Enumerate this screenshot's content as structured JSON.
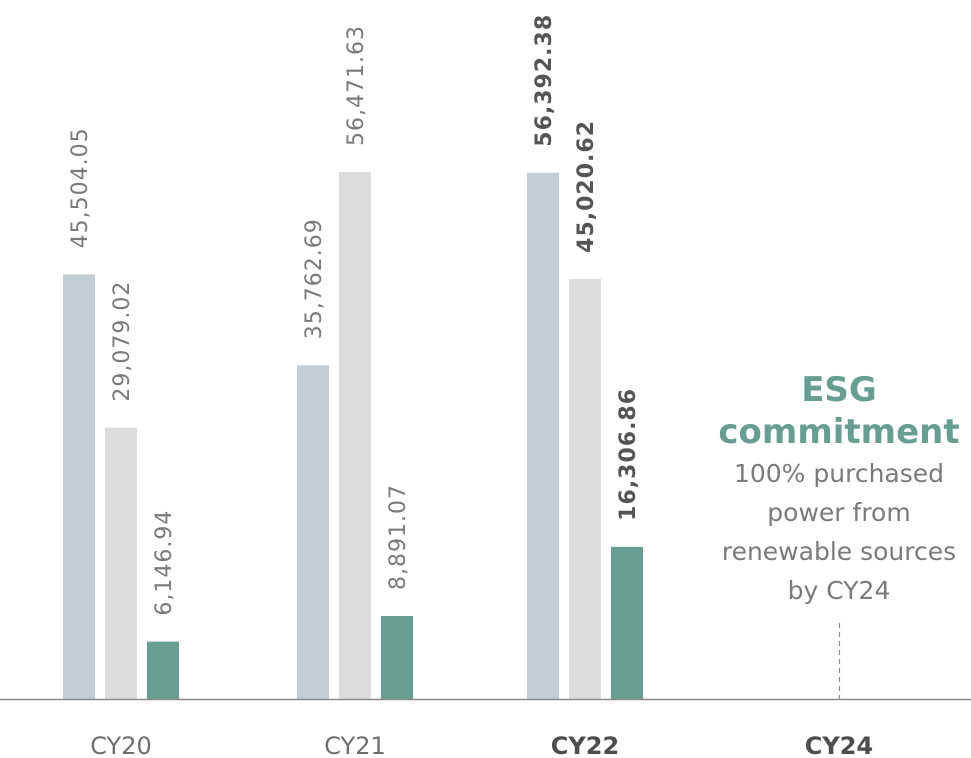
{
  "chart_data": {
    "type": "bar",
    "categories": [
      "CY20",
      "CY21",
      "CY22",
      "CY24"
    ],
    "bold_categories": [
      "CY22",
      "CY24"
    ],
    "series": [
      {
        "values": [
          45504.05,
          35762.69,
          56392.38,
          null
        ],
        "labels": [
          "45,504.05",
          "35,762.69",
          "56,392.38",
          ""
        ],
        "color": "#c3ced4"
      },
      {
        "values": [
          29079.02,
          56471.63,
          45020.62,
          null
        ],
        "labels": [
          "29,079.02",
          "56,471.63",
          "45,020.62",
          ""
        ],
        "color": "#dcdcdc"
      },
      {
        "values": [
          6146.94,
          8891.07,
          16306.86,
          null
        ],
        "labels": [
          "6,146.94",
          "8,891.07",
          "16,306.86",
          ""
        ],
        "color": "#679e91"
      }
    ],
    "ylim": [
      0,
      56471.63
    ],
    "grid": false,
    "legend": "none"
  },
  "annotation": {
    "title_lines": [
      "ESG",
      "commitment"
    ],
    "text_lines": [
      "100% purchased",
      "power from",
      "renewable sources",
      "by CY24"
    ],
    "color": "#679e91"
  },
  "colors": {
    "axis": "#8a8a8a",
    "label": "#7a7a7a"
  }
}
